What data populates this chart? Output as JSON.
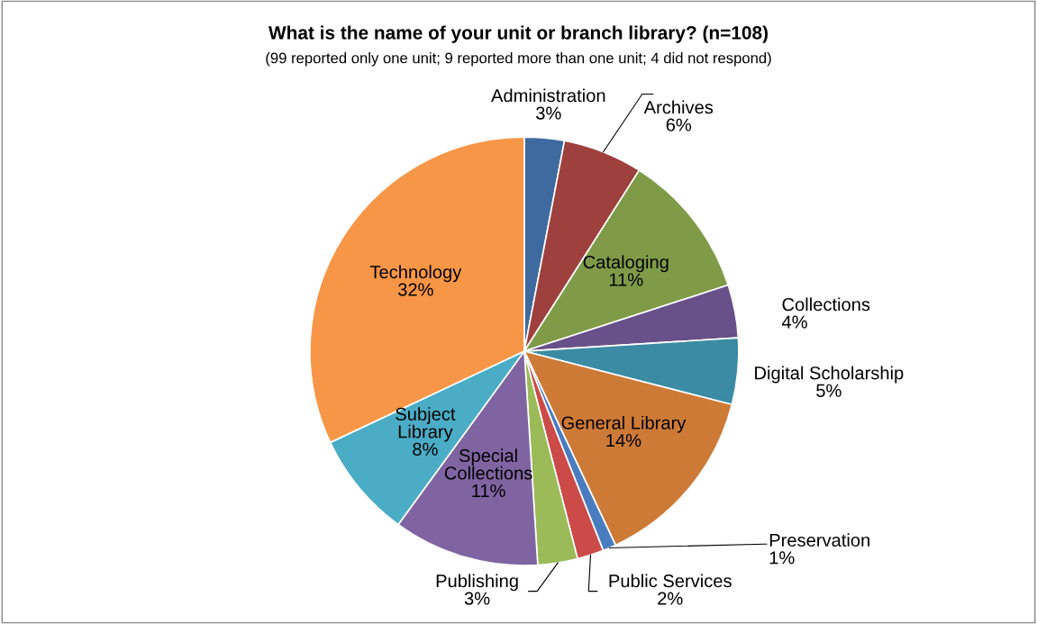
{
  "chart_data": {
    "type": "pie",
    "title": "What is the name of your unit or branch library? (n=108)",
    "subtitle": "(99 reported only one unit; 9 reported more than one unit; 4 did not respond)",
    "categories": [
      "Administration",
      "Archives",
      "Cataloging",
      "Collections",
      "Digital Scholarship",
      "General Library",
      "Preservation",
      "Public Services",
      "Publishing",
      "Special Collections",
      "Subject Library",
      "Technology"
    ],
    "values": [
      3,
      6,
      11,
      4,
      5,
      14,
      1,
      2,
      3,
      11,
      8,
      32
    ],
    "colors": [
      "#3e6aa0",
      "#9e403e",
      "#7f9b48",
      "#68508a",
      "#3a8ba3",
      "#cd7a37",
      "#4a7cc0",
      "#cc4a47",
      "#9bbb59",
      "#8064a2",
      "#4bacc6",
      "#f79646"
    ],
    "value_labels": [
      "3%",
      "6%",
      "11%",
      "4%",
      "5%",
      "14%",
      "1%",
      "2%",
      "3%",
      "11%",
      "8%",
      "32%"
    ]
  }
}
